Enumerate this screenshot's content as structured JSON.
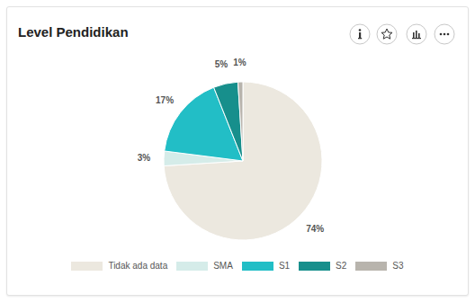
{
  "chart_data": {
    "type": "pie",
    "title": "Level Pendidikan",
    "categories": [
      "Tidak ada data",
      "SMA",
      "S1",
      "S2",
      "S3"
    ],
    "values": [
      74,
      3,
      17,
      5,
      1
    ],
    "value_labels": [
      "74%",
      "3%",
      "17%",
      "5%",
      "1%"
    ],
    "colors": [
      "#ece8df",
      "#d5ece9",
      "#22bec6",
      "#178f8c",
      "#b8b4ad"
    ],
    "data_labels": true,
    "legend": "bottom"
  }
}
